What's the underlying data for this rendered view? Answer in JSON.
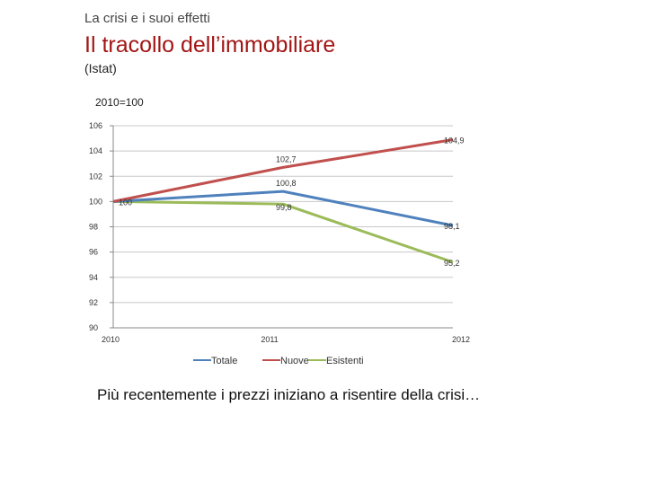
{
  "header": {
    "kicker": "La crisi e i suoi effetti",
    "title": "Il tracollo dell’immobiliare",
    "source": "(Istat)"
  },
  "caption": "Più recentemente i prezzi iniziano a risentire della crisi…",
  "chart_data": {
    "type": "line",
    "title": "2010=100",
    "x": [
      "2010",
      "2011",
      "2012"
    ],
    "ylim": [
      90,
      106
    ],
    "yticks": [
      "90",
      "92",
      "94",
      "96",
      "98",
      "100",
      "102",
      "104",
      "106"
    ],
    "grid": "horizontal",
    "legend_position": "bottom",
    "series": [
      {
        "name": "Totale",
        "values": [
          100,
          100.8,
          98.1
        ],
        "labels": [
          "",
          "100,8",
          "98,1"
        ],
        "color": "#4f81bd"
      },
      {
        "name": "Nuove",
        "values": [
          100,
          102.7,
          104.9
        ],
        "labels": [
          "",
          "102,7",
          "104,9"
        ],
        "color": "#c0504d"
      },
      {
        "name": "Esistenti",
        "values": [
          100,
          99.8,
          95.2
        ],
        "labels": [
          "100",
          "99,8",
          "95,2"
        ],
        "color": "#9bbb59"
      }
    ]
  }
}
